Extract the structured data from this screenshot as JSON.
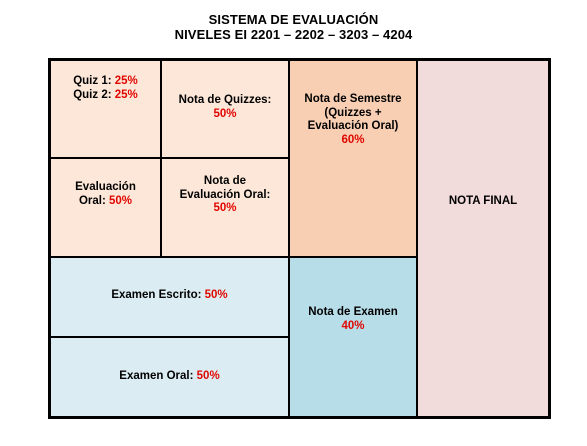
{
  "header": {
    "title": "SISTEMA DE EVALUACIÓN",
    "subtitle": "NIVELES EI 2201 – 2202 – 3203 – 4204"
  },
  "colors": {
    "peach_light": "#fce7d9",
    "peach": "#f8cfb3",
    "pink": "#f2dbdb",
    "blue_light": "#dbedf3",
    "blue": "#b7dde8",
    "percent_red": "#e10600"
  },
  "cells": {
    "quiz1": {
      "label": "Quiz 1:",
      "pct": "25%"
    },
    "quiz2": {
      "label": "Quiz 2:",
      "pct": "25%"
    },
    "nota_quizzes": {
      "label": "Nota de Quizzes:",
      "pct": "50%"
    },
    "nota_semestre": {
      "line1": "Nota de Semestre",
      "line2": "(Quizzes +",
      "line3": "Evaluación Oral)",
      "pct": "60%"
    },
    "evaluacion_oral": {
      "line1": "Evaluación",
      "label": "Oral:",
      "pct": "50%"
    },
    "nota_evaluacion_oral": {
      "line1": "Nota de",
      "line2": "Evaluación Oral:",
      "pct": "50%"
    },
    "nota_final": {
      "label": "NOTA FINAL"
    },
    "examen_escrito": {
      "label": "Examen Escrito:",
      "pct": "50%"
    },
    "examen_oral": {
      "label": "Examen Oral:",
      "pct": "50%"
    },
    "nota_examen": {
      "label": "Nota de Examen",
      "pct": "40%"
    }
  }
}
